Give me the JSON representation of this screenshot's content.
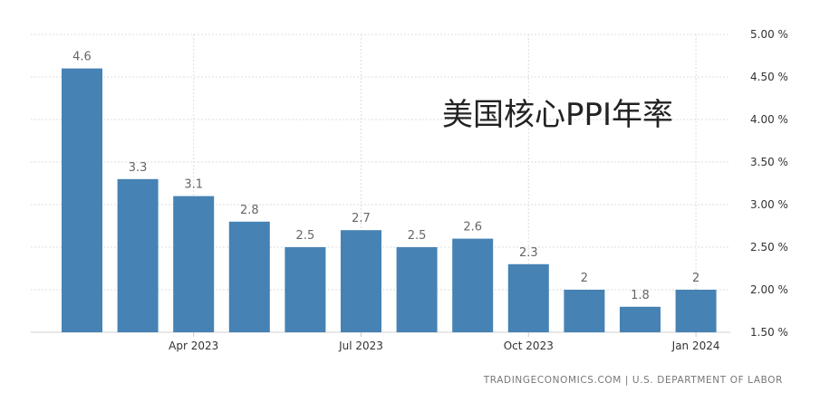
{
  "chart_data": {
    "type": "bar",
    "title": "美国核心PPI年率",
    "source": "TRADINGECONOMICS.COM  |  U.S. DEPARTMENT OF LABOR",
    "categories": [
      "2023-02",
      "2023-03",
      "2023-04",
      "2023-05",
      "2023-06",
      "2023-07",
      "2023-08",
      "2023-09",
      "2023-10",
      "2023-11",
      "2023-12",
      "2024-01"
    ],
    "values": [
      4.6,
      3.3,
      3.1,
      2.8,
      2.5,
      2.7,
      2.5,
      2.6,
      2.3,
      2.0,
      1.8,
      2.0
    ],
    "data_labels": [
      "4.6",
      "3.3",
      "3.1",
      "2.8",
      "2.5",
      "2.7",
      "2.5",
      "2.6",
      "2.3",
      "2",
      "1.8",
      "2"
    ],
    "x_ticks": [
      {
        "category_index": 2,
        "label": "Apr 2023"
      },
      {
        "category_index": 5,
        "label": "Jul 2023"
      },
      {
        "category_index": 8,
        "label": "Oct 2023"
      },
      {
        "category_index": 11,
        "label": "Jan 2024"
      }
    ],
    "y_ticks": [
      {
        "value": 1.5,
        "label": "1.50 %"
      },
      {
        "value": 2.0,
        "label": "2.00 %"
      },
      {
        "value": 2.5,
        "label": "2.50 %"
      },
      {
        "value": 3.0,
        "label": "3.00 %"
      },
      {
        "value": 3.5,
        "label": "3.50 %"
      },
      {
        "value": 4.0,
        "label": "4.00 %"
      },
      {
        "value": 4.5,
        "label": "4.50 %"
      },
      {
        "value": 5.0,
        "label": "5.00 %"
      }
    ],
    "ylim": [
      1.5,
      5.0
    ],
    "y_axis_side": "right",
    "grid": true,
    "bar_color": "#4682b4"
  }
}
